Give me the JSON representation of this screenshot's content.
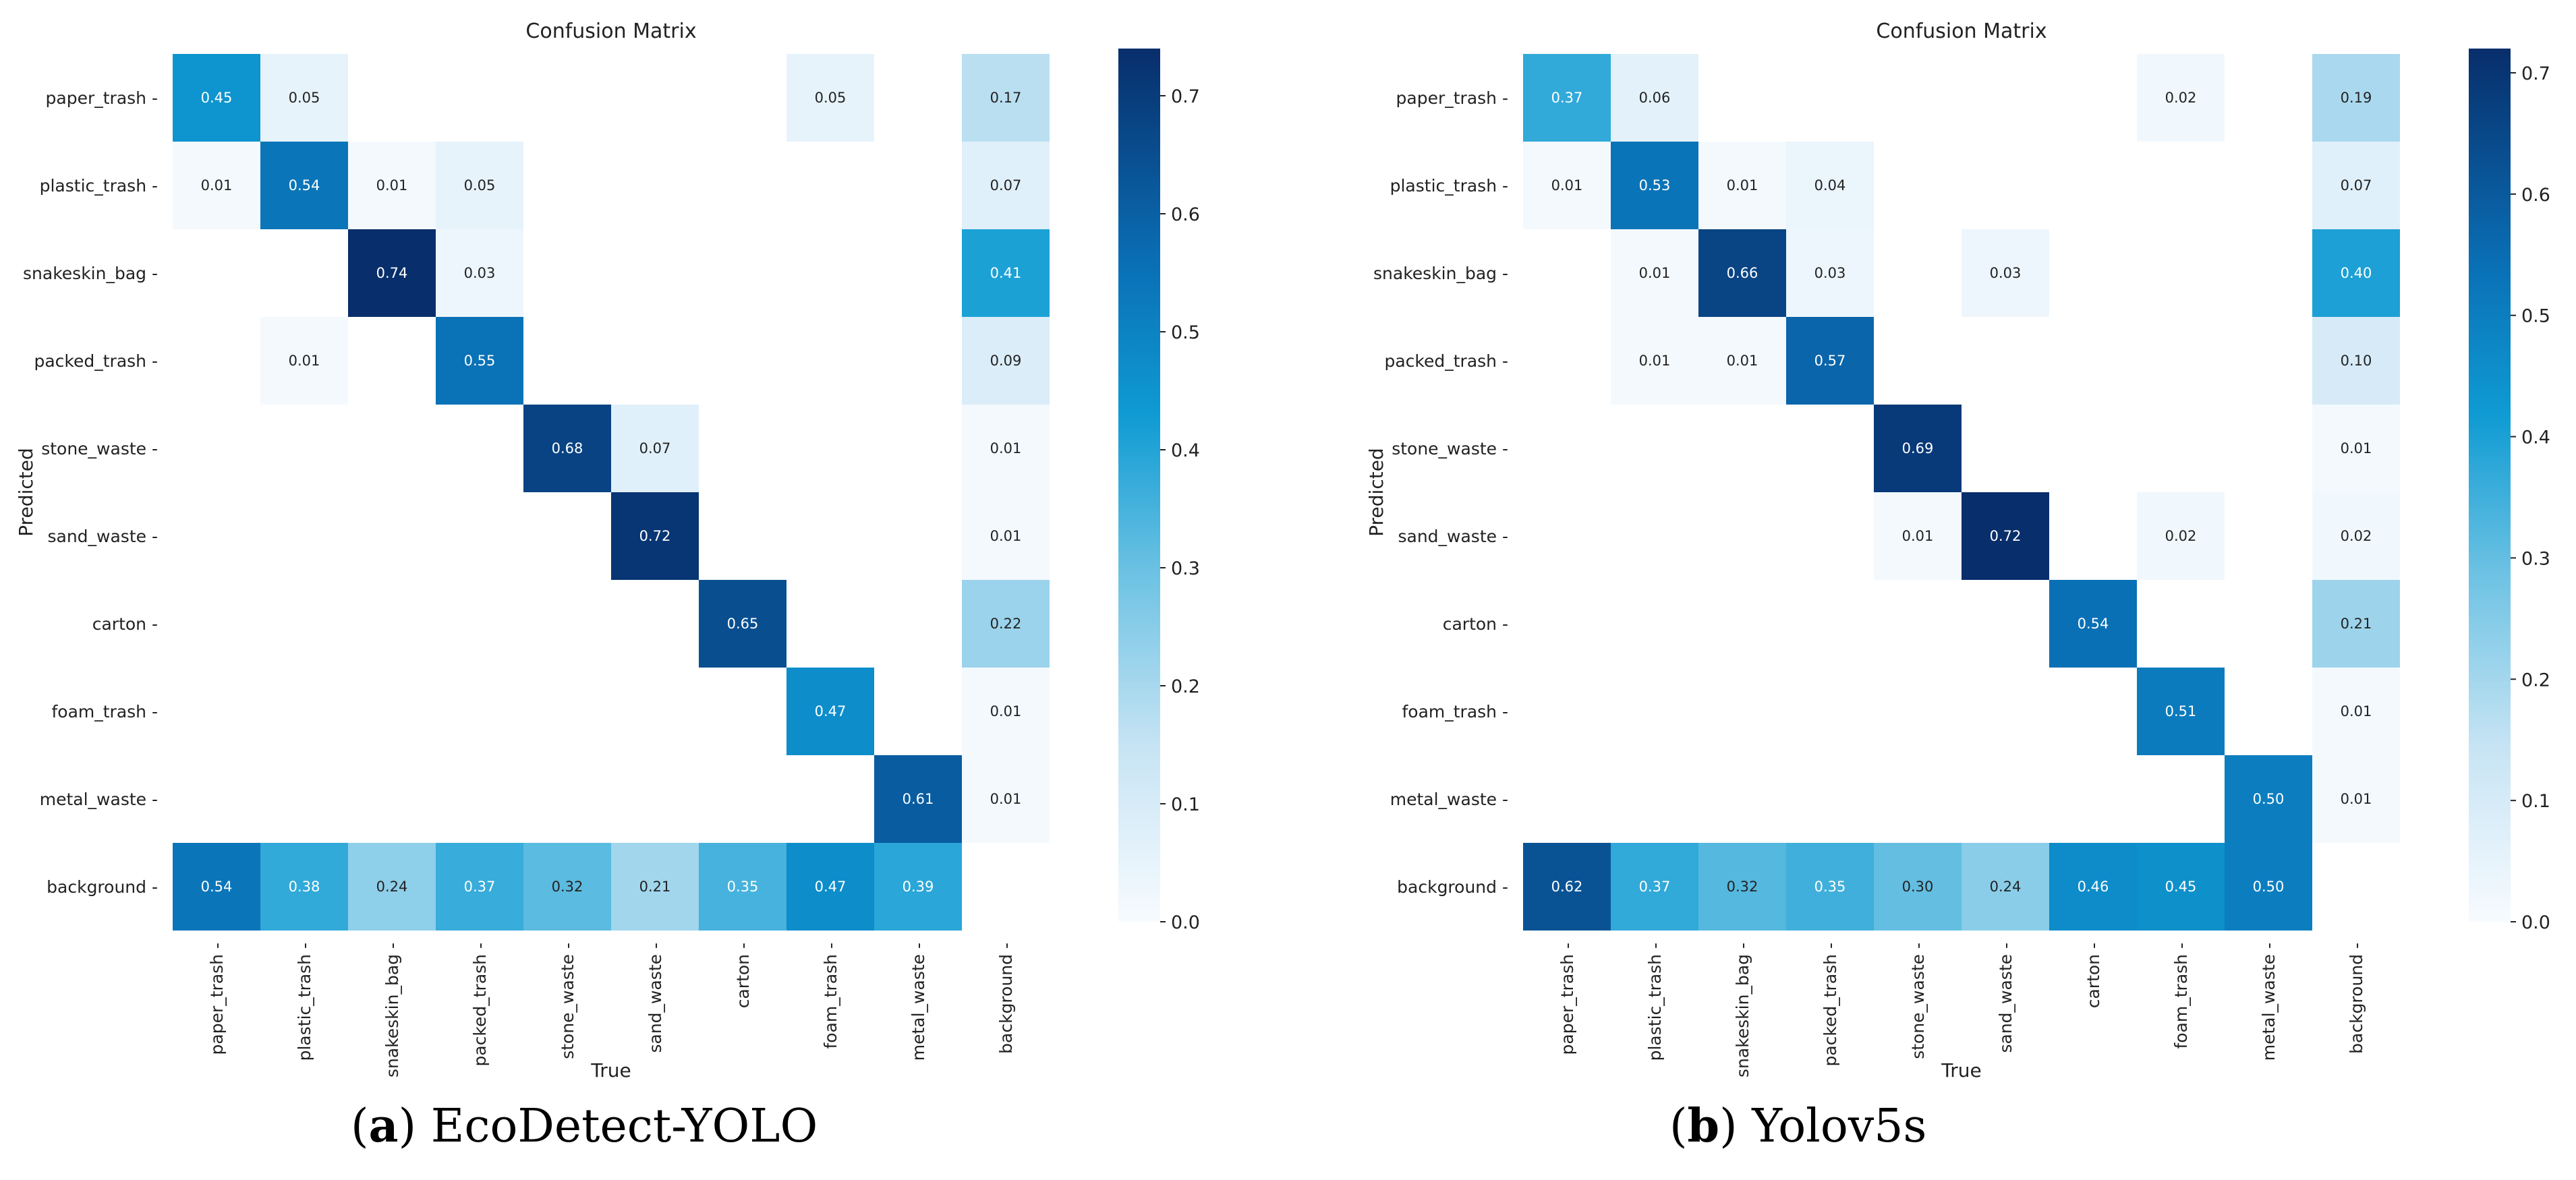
{
  "chart_data": [
    {
      "type": "heatmap",
      "title": "Confusion Matrix",
      "xlabel": "True",
      "ylabel": "Predicted",
      "caption_letter": "a",
      "caption_text": "EcoDetect-YOLO",
      "x_categories": [
        "paper_trash",
        "plastic_trash",
        "snakeskin_bag",
        "packed_trash",
        "stone_waste",
        "sand_waste",
        "carton",
        "foam_trash",
        "metal_waste",
        "background"
      ],
      "y_categories": [
        "paper_trash",
        "plastic_trash",
        "snakeskin_bag",
        "packed_trash",
        "stone_waste",
        "sand_waste",
        "carton",
        "foam_trash",
        "metal_waste",
        "background"
      ],
      "values": [
        [
          0.45,
          0.05,
          null,
          null,
          null,
          null,
          null,
          0.05,
          null,
          0.17
        ],
        [
          0.01,
          0.54,
          0.01,
          0.05,
          null,
          null,
          null,
          null,
          null,
          0.07
        ],
        [
          null,
          null,
          0.74,
          0.03,
          null,
          null,
          null,
          null,
          null,
          0.41
        ],
        [
          null,
          0.01,
          null,
          0.55,
          null,
          null,
          null,
          null,
          null,
          0.09
        ],
        [
          null,
          null,
          null,
          null,
          0.68,
          0.07,
          null,
          null,
          null,
          0.01
        ],
        [
          null,
          null,
          null,
          null,
          null,
          0.72,
          null,
          null,
          null,
          0.01
        ],
        [
          null,
          null,
          null,
          null,
          null,
          null,
          0.65,
          null,
          null,
          0.22
        ],
        [
          null,
          null,
          null,
          null,
          null,
          null,
          null,
          0.47,
          null,
          0.01
        ],
        [
          null,
          null,
          null,
          null,
          null,
          null,
          null,
          null,
          0.61,
          0.01
        ],
        [
          0.54,
          0.38,
          0.24,
          0.37,
          0.32,
          0.21,
          0.35,
          0.47,
          0.39,
          null
        ]
      ],
      "colorbar_range": [
        0,
        0.74
      ],
      "colorbar_ticks": [
        "0.0",
        "0.1",
        "0.2",
        "0.3",
        "0.4",
        "0.5",
        "0.6",
        "0.7"
      ]
    },
    {
      "type": "heatmap",
      "title": "Confusion Matrix",
      "xlabel": "True",
      "ylabel": "Predicted",
      "caption_letter": "b",
      "caption_text": "Yolov5s",
      "x_categories": [
        "paper_trash",
        "plastic_trash",
        "snakeskin_bag",
        "packed_trash",
        "stone_waste",
        "sand_waste",
        "carton",
        "foam_trash",
        "metal_waste",
        "background"
      ],
      "y_categories": [
        "paper_trash",
        "plastic_trash",
        "snakeskin_bag",
        "packed_trash",
        "stone_waste",
        "sand_waste",
        "carton",
        "foam_trash",
        "metal_waste",
        "background"
      ],
      "values": [
        [
          0.37,
          0.06,
          null,
          null,
          null,
          null,
          null,
          0.02,
          null,
          0.19
        ],
        [
          0.01,
          0.53,
          0.01,
          0.04,
          null,
          null,
          null,
          null,
          null,
          0.07
        ],
        [
          null,
          0.01,
          0.66,
          0.03,
          null,
          0.03,
          null,
          null,
          null,
          0.4
        ],
        [
          null,
          0.01,
          0.01,
          0.57,
          null,
          null,
          null,
          null,
          null,
          0.1
        ],
        [
          null,
          null,
          null,
          null,
          0.69,
          null,
          null,
          null,
          null,
          0.01
        ],
        [
          null,
          null,
          null,
          null,
          0.01,
          0.72,
          null,
          0.02,
          null,
          0.02
        ],
        [
          null,
          null,
          null,
          null,
          null,
          null,
          0.54,
          null,
          null,
          0.21
        ],
        [
          null,
          null,
          null,
          null,
          null,
          null,
          null,
          0.51,
          null,
          0.01
        ],
        [
          null,
          null,
          null,
          null,
          null,
          null,
          null,
          null,
          0.5,
          0.01
        ],
        [
          0.62,
          0.37,
          0.32,
          0.35,
          0.3,
          0.24,
          0.46,
          0.45,
          0.5,
          null
        ]
      ],
      "colorbar_range": [
        0,
        0.72
      ],
      "colorbar_ticks": [
        "0.0",
        "0.1",
        "0.2",
        "0.3",
        "0.4",
        "0.5",
        "0.6",
        "0.7"
      ]
    }
  ]
}
